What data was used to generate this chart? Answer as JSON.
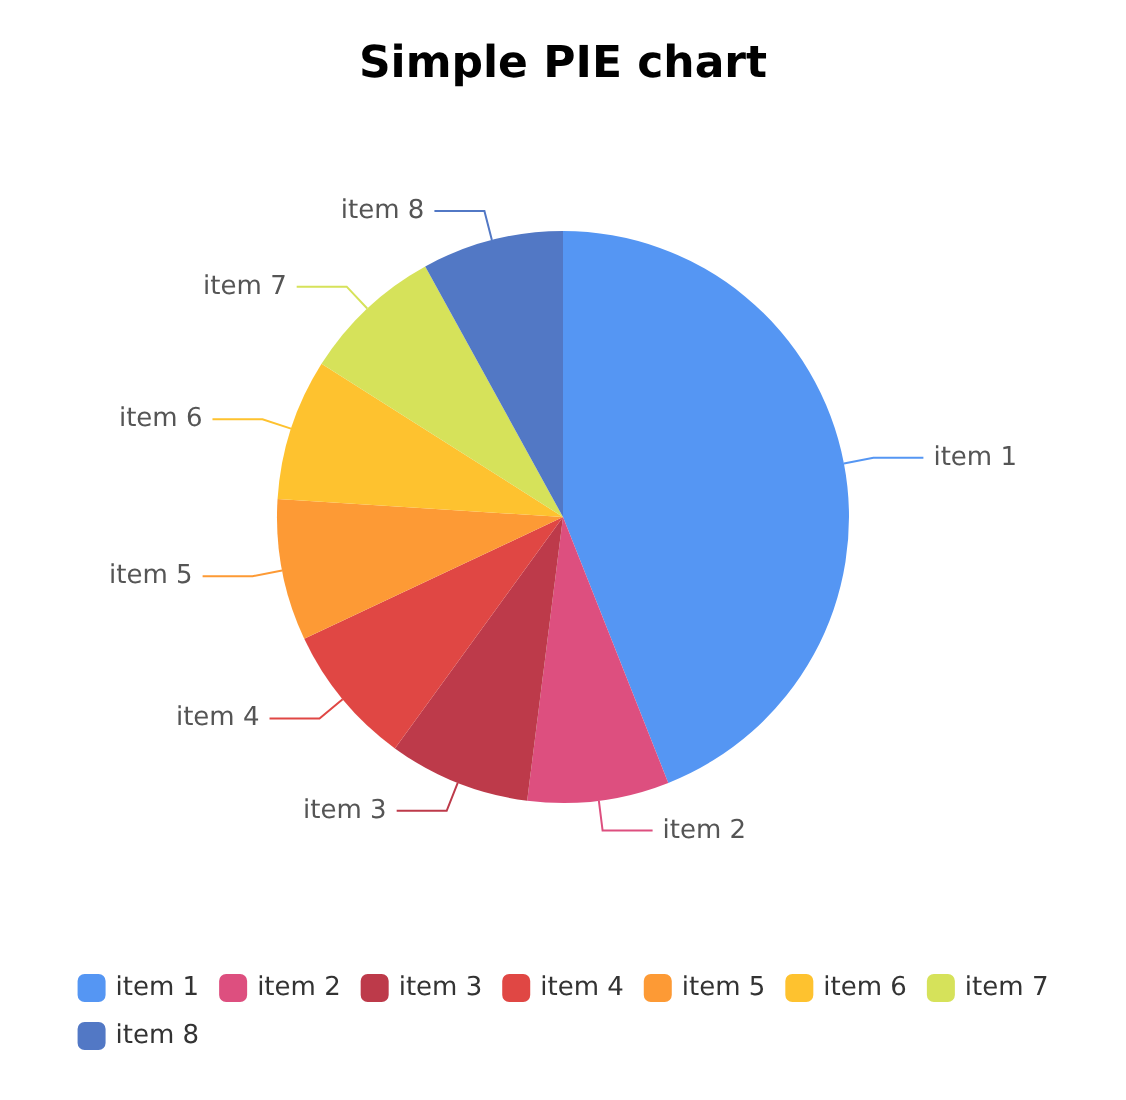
{
  "chart_data": {
    "type": "pie",
    "title": "Simple PIE chart",
    "categories": [
      "item 1",
      "item 2",
      "item 3",
      "item 4",
      "item 5",
      "item 6",
      "item 7",
      "item 8"
    ],
    "values": [
      44,
      8,
      8,
      8,
      8,
      8,
      8,
      8
    ],
    "colors": [
      "#5596f3",
      "#dd4f7f",
      "#bd3a4a",
      "#e04744",
      "#fd9a35",
      "#fec22f",
      "#d6e25a",
      "#5278c5"
    ],
    "legend": "bottom"
  }
}
